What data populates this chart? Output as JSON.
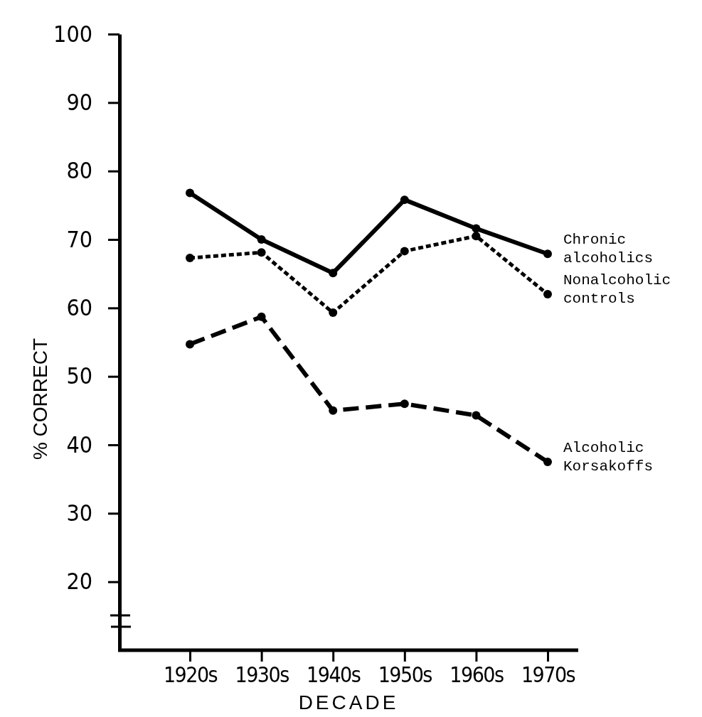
{
  "chart_data": {
    "type": "line",
    "xlabel": "DECADE",
    "ylabel": "% CORRECT",
    "categories": [
      "1920s",
      "1930s",
      "1940s",
      "1950s",
      "1960s",
      "1970s"
    ],
    "ylim": [
      10,
      100
    ],
    "yticks": [
      20,
      30,
      40,
      50,
      60,
      70,
      80,
      90,
      100
    ],
    "grid": false,
    "marker": "circle",
    "series": [
      {
        "name": "Chronic alcoholics",
        "color": "#000000",
        "line_style": "solid",
        "values": [
          76.8,
          70.0,
          65.1,
          75.8,
          71.6,
          67.9
        ]
      },
      {
        "name": "Nonalcoholic controls",
        "color": "#000000",
        "line_style": "dotted",
        "values": [
          67.3,
          68.1,
          59.3,
          68.3,
          70.5,
          62.0
        ]
      },
      {
        "name": "Alcoholic Korsakoffs",
        "color": "#000000",
        "line_style": "dashed",
        "values": [
          54.7,
          58.7,
          45.0,
          46.0,
          44.3,
          37.5
        ]
      }
    ]
  }
}
